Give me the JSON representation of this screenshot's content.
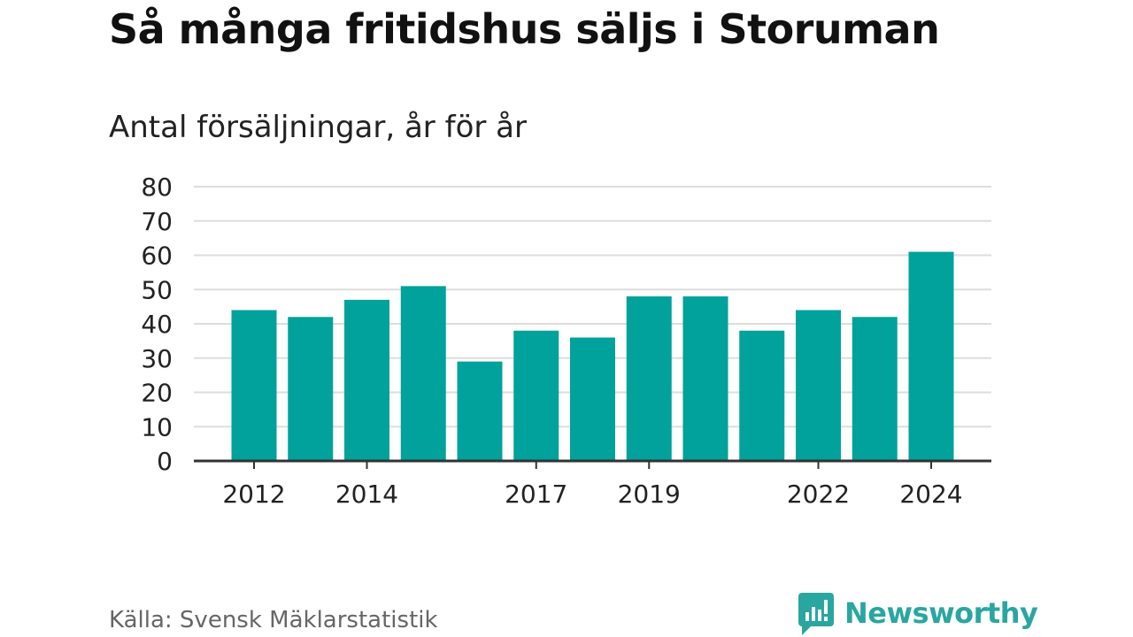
{
  "title": "Så många fritidshus säljs i Storuman",
  "subtitle": "Antal försäljningar, år för år",
  "source": "Källa: Svensk Mäklarstatistik",
  "brand": {
    "name": "Newsworthy",
    "icon": "bar-chart-bubble-icon"
  },
  "colors": {
    "bar": "#00a29b",
    "grid": "#dddddd",
    "axis": "#333333",
    "brand": "#2aa6a0"
  },
  "chart_data": {
    "type": "bar",
    "categories": [
      "2012",
      "2013",
      "2014",
      "2015",
      "2016",
      "2017",
      "2018",
      "2019",
      "2020",
      "2021",
      "2022",
      "2023",
      "2024"
    ],
    "values": [
      44,
      42,
      47,
      51,
      29,
      38,
      36,
      48,
      48,
      38,
      44,
      42,
      61
    ],
    "xtick_labels": [
      "2012",
      "2014",
      "2017",
      "2019",
      "2022",
      "2024"
    ],
    "yticks": [
      0,
      10,
      20,
      30,
      40,
      50,
      60,
      70,
      80
    ],
    "ylim": [
      0,
      80
    ],
    "xlabel": "",
    "ylabel": "",
    "grid": true
  }
}
